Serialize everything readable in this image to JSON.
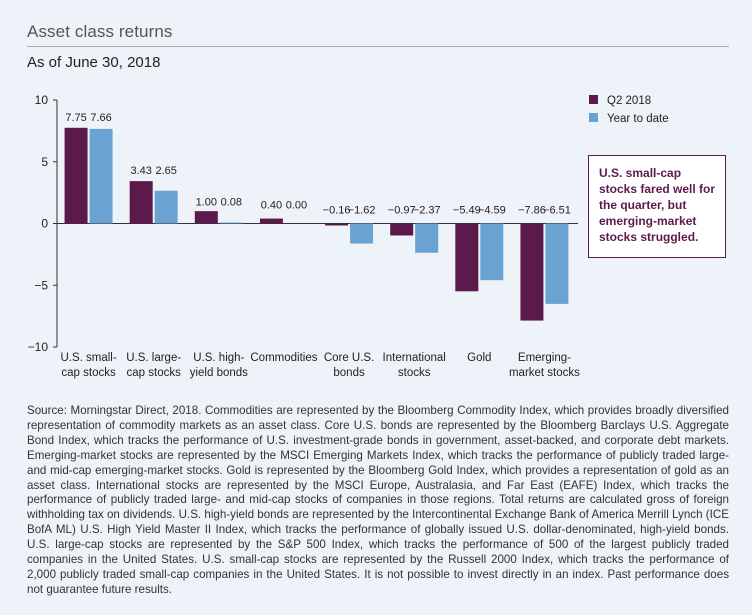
{
  "header": {
    "title": "Asset class returns",
    "subtitle": "As of June 30, 2018"
  },
  "colors": {
    "q2": "#5c1a4c",
    "ytd": "#6aa3d2",
    "background": "#eef3f9"
  },
  "chart_data": {
    "type": "bar",
    "title": "Asset class returns",
    "subtitle": "As of June 30, 2018",
    "xlabel": "",
    "ylabel": "",
    "ylim": [
      -10,
      10
    ],
    "yticks": [
      10,
      5,
      0,
      -5,
      -10
    ],
    "yticks_text": [
      "10",
      "5",
      "0",
      "−5",
      "−10"
    ],
    "grid": false,
    "legend_position": "top-right",
    "categories": [
      [
        "U.S. small-",
        "cap stocks"
      ],
      [
        "U.S. large-",
        "cap stocks"
      ],
      [
        "U.S. high-",
        "yield bonds"
      ],
      [
        "Commodities"
      ],
      [
        "Core U.S.",
        "bonds"
      ],
      [
        "International",
        "stocks"
      ],
      [
        "Gold"
      ],
      [
        "Emerging-",
        "market stocks"
      ]
    ],
    "series": [
      {
        "name": "Q2 2018",
        "values": [
          7.75,
          3.43,
          1.0,
          0.4,
          -0.16,
          -0.97,
          -5.49,
          -7.86
        ],
        "labels": [
          "7.75",
          "3.43",
          "1.00",
          "0.40",
          "−0.16",
          "−0.97",
          "−5.49",
          "−7.86"
        ]
      },
      {
        "name": "Year to date",
        "values": [
          7.66,
          2.65,
          0.08,
          0.0,
          -1.62,
          -2.37,
          -4.59,
          -6.51
        ],
        "labels": [
          "7.66",
          "2.65",
          "0.08",
          "0.00",
          "−1.62",
          "−2.37",
          "−4.59",
          "−6.51"
        ]
      }
    ]
  },
  "callout": {
    "text": "U.S. small-cap stocks fared well for the quarter, but emerging-market stocks struggled."
  },
  "source_note": "Source: Morningstar Direct, 2018. Commodities are represented by the Bloomberg Commodity Index, which provides broadly diversified representation of commodity markets as an asset class. Core U.S. bonds are represented by the Bloomberg Barclays U.S. Aggregate Bond Index, which tracks the performance of U.S. investment-grade bonds in government, asset-backed, and corporate debt markets. Emerging-market stocks are represented by the MSCI Emerging Markets Index, which tracks the performance of publicly traded large- and mid-cap emerging-market stocks. Gold is represented by the Bloomberg Gold Index, which provides a representation of gold as an asset class. International stocks are represented by the MSCI Europe, Australasia, and Far East (EAFE) Index, which tracks the performance of publicly traded large- and mid-cap stocks of companies in those regions. Total returns are calculated gross of foreign withholding tax on dividends. U.S. high-yield bonds are represented by the Intercontinental Exchange Bank of America Merrill Lynch (ICE BofA ML) U.S. High Yield Master II Index, which tracks the performance of globally issued U.S. dollar-denominated, high-yield bonds. U.S. large-cap stocks are represented by the S&P 500 Index, which tracks the performance of 500 of the largest publicly traded companies in the United States. U.S. small-cap stocks are represented by the Russell 2000 Index, which tracks the performance of 2,000 publicly traded small-cap companies in the United States. It is not possible to invest directly in an index. Past performance does not guarantee future results."
}
